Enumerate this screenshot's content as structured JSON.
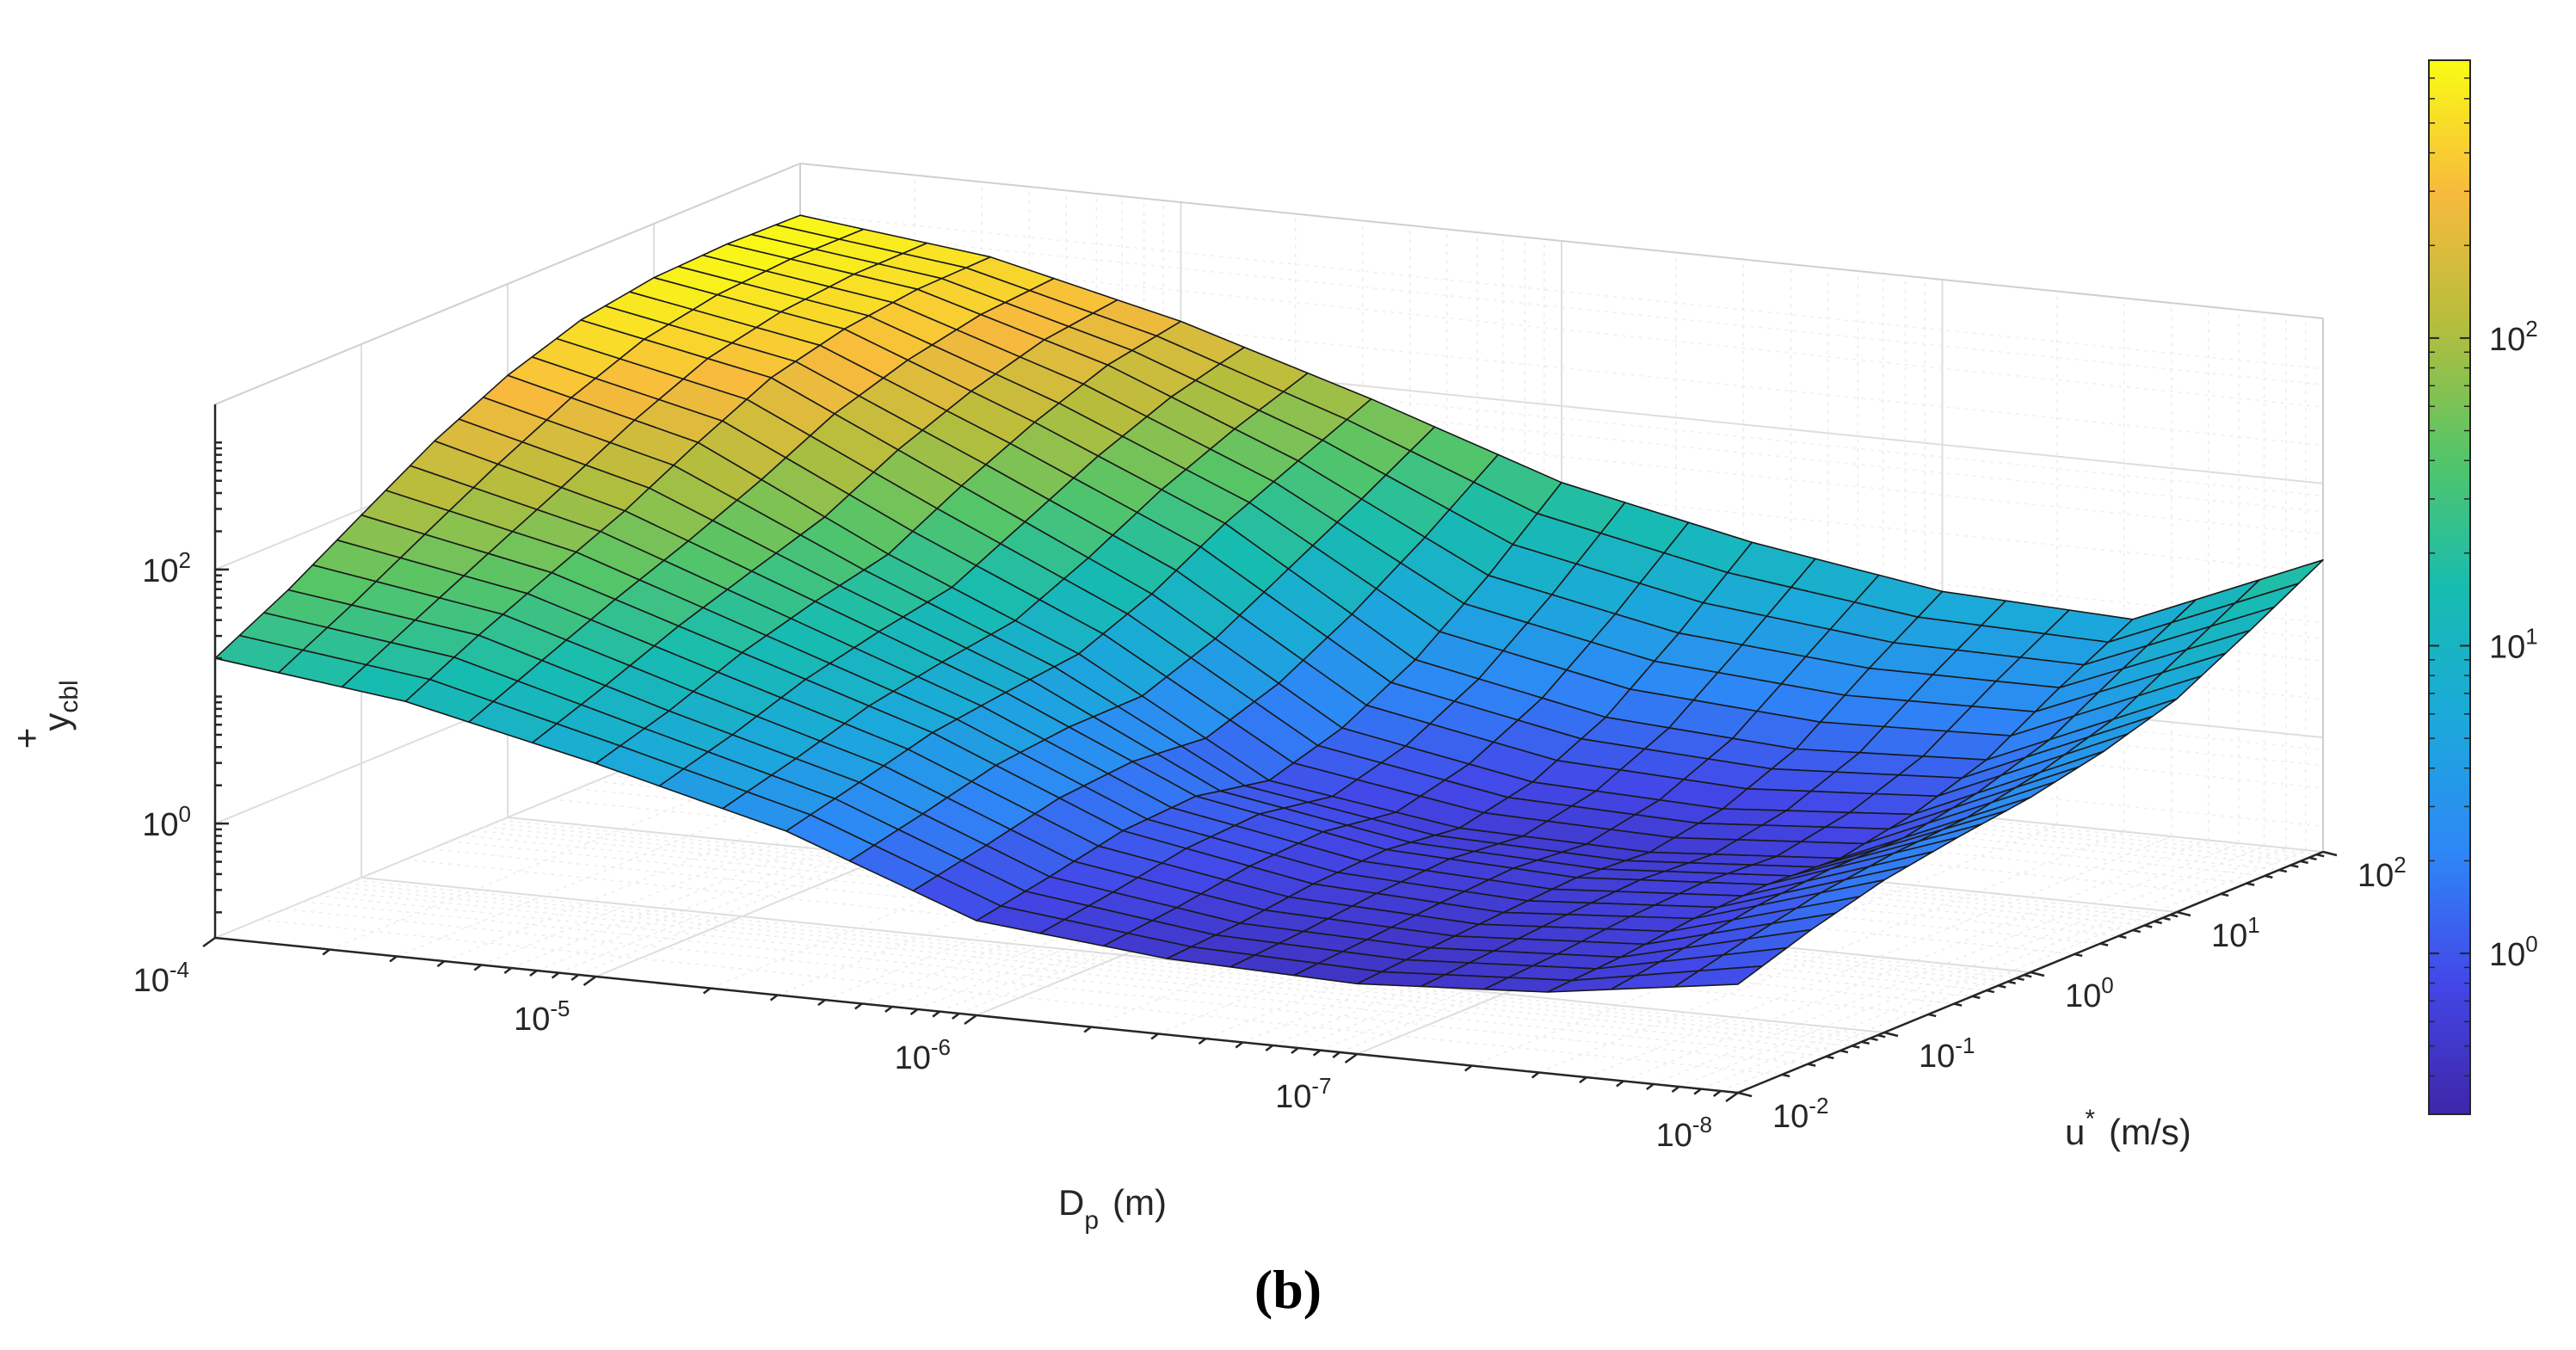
{
  "chart_data": {
    "type": "surface",
    "panel_label": "(b)",
    "x_axis": {
      "label": "D",
      "label_subscript": "p",
      "label_unit": "(m)",
      "scale": "log",
      "direction": "decreasing",
      "ticks": [
        {
          "base": "10",
          "exp": "-4"
        },
        {
          "base": "10",
          "exp": "-5"
        },
        {
          "base": "10",
          "exp": "-6"
        },
        {
          "base": "10",
          "exp": "-7"
        },
        {
          "base": "10",
          "exp": "-8"
        }
      ],
      "range_log10": [
        -4,
        -8
      ]
    },
    "y_axis": {
      "label": "u",
      "label_superscript": "*",
      "label_unit": "(m/s)",
      "scale": "log",
      "ticks": [
        {
          "base": "10",
          "exp": "-2"
        },
        {
          "base": "10",
          "exp": "-1"
        },
        {
          "base": "10",
          "exp": "0"
        },
        {
          "base": "10",
          "exp": "1"
        },
        {
          "base": "10",
          "exp": "2"
        }
      ],
      "range_log10": [
        -2,
        2
      ]
    },
    "z_axis": {
      "label": "y",
      "label_superscript": "+",
      "label_subscript": "cbl",
      "scale": "log",
      "ticks": [
        {
          "base": "10",
          "exp": "0"
        },
        {
          "base": "10",
          "exp": "2"
        }
      ]
    },
    "colorbar": {
      "scale": "log",
      "colormap": "parula",
      "ticks": [
        {
          "base": "10",
          "exp": "0"
        },
        {
          "base": "10",
          "exp": "1"
        },
        {
          "base": "10",
          "exp": "2"
        }
      ],
      "range": [
        0.3,
        800
      ]
    },
    "grid": true,
    "x_log10_values": [
      -4,
      -4.5,
      -5,
      -5.5,
      -6,
      -6.5,
      -7,
      -7.5,
      -8
    ],
    "y_log10_values": [
      -2,
      -1.5,
      -1,
      -0.5,
      0,
      0.5,
      1,
      1.5,
      2
    ],
    "z_values": [
      [
        20,
        13,
        6,
        2.5,
        0.7,
        0.5,
        0.45,
        0.55,
        0.9
      ],
      [
        40,
        25,
        9,
        3.5,
        0.9,
        0.55,
        0.5,
        0.6,
        1.4
      ],
      [
        90,
        45,
        15,
        5,
        1.2,
        0.65,
        0.55,
        0.7,
        2.0
      ],
      [
        200,
        80,
        22,
        6,
        1.3,
        0.7,
        0.6,
        0.75,
        2.5
      ],
      [
        380,
        160,
        30,
        7,
        1.0,
        0.6,
        0.55,
        0.7,
        3.0
      ],
      [
        600,
        300,
        60,
        12,
        1.5,
        0.8,
        0.7,
        0.9,
        4.0
      ],
      [
        750,
        420,
        110,
        25,
        3,
        1.5,
        1.2,
        1.4,
        6
      ],
      [
        800,
        500,
        180,
        45,
        8,
        4,
        3,
        3,
        12
      ],
      [
        780,
        520,
        230,
        80,
        25,
        12,
        7,
        6,
        25
      ]
    ]
  }
}
